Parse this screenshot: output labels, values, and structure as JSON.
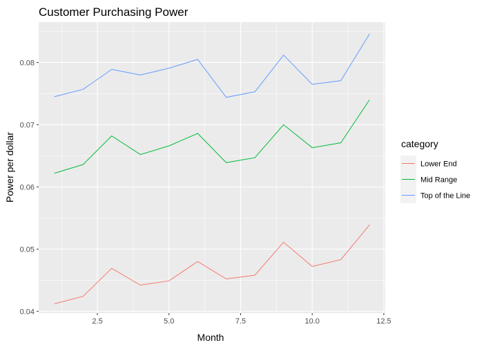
{
  "chart_data": {
    "type": "line",
    "title": "Customer Purchasing Power",
    "xlabel": "Month",
    "ylabel": "Power per dollar",
    "xlim": [
      0.45,
      12.55
    ],
    "ylim": [
      0.0397,
      0.0865
    ],
    "x_ticks": [
      2.5,
      5.0,
      7.5,
      10.0,
      12.5
    ],
    "x_tick_labels": [
      "2.5",
      "5.0",
      "7.5",
      "10.0",
      "12.5"
    ],
    "y_ticks": [
      0.04,
      0.05,
      0.06,
      0.07,
      0.08
    ],
    "y_tick_labels": [
      "0.04",
      "0.05",
      "0.06",
      "0.07",
      "0.08"
    ],
    "grid": true,
    "legend_title": "category",
    "legend_position": "right",
    "x": [
      1,
      2,
      3,
      4,
      5,
      6,
      7,
      8,
      9,
      10,
      11,
      12
    ],
    "series": [
      {
        "name": "Lower End",
        "color": "#F8766D",
        "values": [
          0.0412,
          0.0424,
          0.0469,
          0.0442,
          0.0449,
          0.048,
          0.0452,
          0.0458,
          0.0511,
          0.0472,
          0.0483,
          0.0539
        ]
      },
      {
        "name": "Mid Range",
        "color": "#00BA38",
        "values": [
          0.0622,
          0.0636,
          0.0682,
          0.0652,
          0.0666,
          0.0686,
          0.0639,
          0.0647,
          0.07,
          0.0663,
          0.0671,
          0.074
        ]
      },
      {
        "name": "Top of the Line",
        "color": "#619CFF",
        "values": [
          0.0745,
          0.0757,
          0.0789,
          0.078,
          0.0791,
          0.0805,
          0.0744,
          0.0753,
          0.0812,
          0.0765,
          0.0771,
          0.0846
        ]
      }
    ]
  }
}
